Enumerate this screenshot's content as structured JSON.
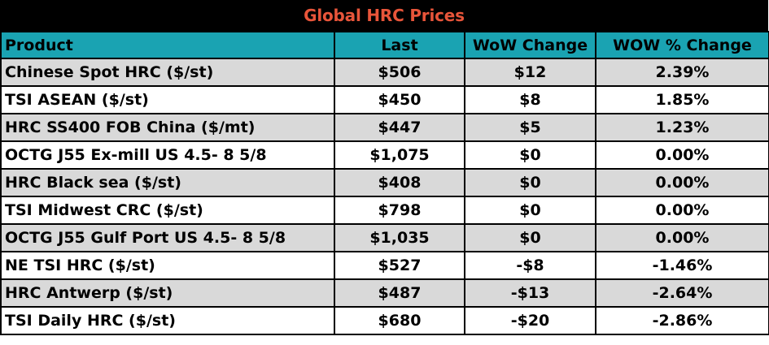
{
  "chart_data": {
    "type": "table",
    "title": "Global HRC Prices",
    "columns": [
      "Product",
      "Last",
      "WoW Change",
      "WOW % Change"
    ],
    "rows": [
      [
        "Chinese Spot HRC ($/st)",
        "$506",
        "$12",
        "2.39%"
      ],
      [
        "TSI ASEAN ($/st)",
        "$450",
        "$8",
        "1.85%"
      ],
      [
        "HRC SS400 FOB China ($/mt)",
        "$447",
        "$5",
        "1.23%"
      ],
      [
        "OCTG J55 Ex-mill US 4.5- 8 5/8",
        "$1,075",
        "$0",
        "0.00%"
      ],
      [
        "HRC Black sea ($/st)",
        "$408",
        "$0",
        "0.00%"
      ],
      [
        "TSI Midwest CRC ($/st)",
        "$798",
        "$0",
        "0.00%"
      ],
      [
        "OCTG J55 Gulf Port US 4.5- 8 5/8",
        "$1,035",
        "$0",
        "0.00%"
      ],
      [
        "NE TSI HRC ($/st)",
        "$527",
        "-$8",
        "-1.46%"
      ],
      [
        "HRC Antwerp ($/st)",
        "$487",
        "-$13",
        "-2.64%"
      ],
      [
        "TSI Daily HRC ($/st)",
        "$680",
        "-$20",
        "-2.86%"
      ]
    ]
  },
  "colors": {
    "title_background": "#000000",
    "title_text": "#e8553a",
    "header_background": "#1aa3b2",
    "shaded_row": "#d9d9d9",
    "plain_row": "#ffffff",
    "border": "#000000"
  }
}
